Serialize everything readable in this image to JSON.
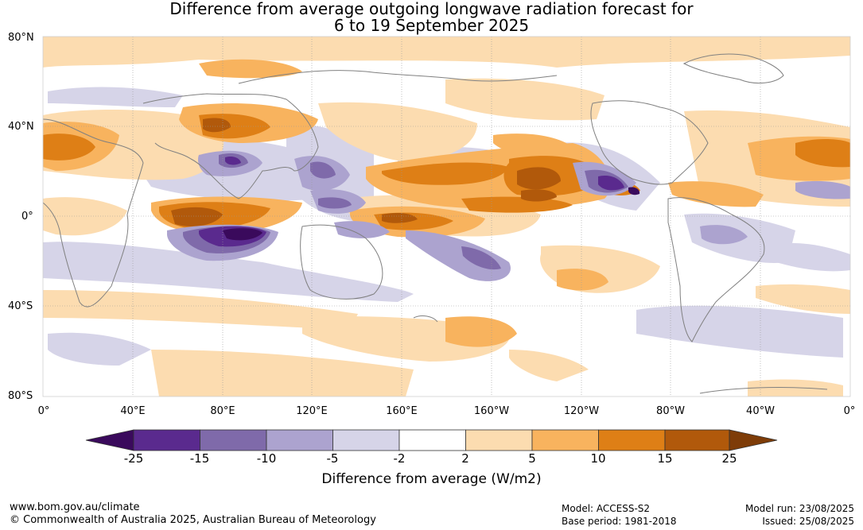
{
  "title": {
    "line1": "Difference from average outgoing longwave radiation forecast for",
    "line2": "6 to 19 September 2025"
  },
  "map": {
    "lat_labels": [
      "80°N",
      "40°N",
      "0°",
      "40°S",
      "80°S"
    ],
    "lon_labels": [
      "0°",
      "40°E",
      "80°E",
      "120°E",
      "160°E",
      "160°W",
      "120°W",
      "80°W",
      "40°W",
      "0°"
    ]
  },
  "colorbar": {
    "title": "Difference from average (W/m2)",
    "ticks": [
      "-25",
      "-15",
      "-10",
      "-5",
      "-2",
      "2",
      "5",
      "10",
      "15",
      "25"
    ],
    "colors": {
      "lt_-25": "#3a0a5c",
      "m25_m15": "#5a2a8e",
      "m15_m10": "#7f6aaa",
      "m10_m5": "#aca3cf",
      "m5_m2": "#d6d4e8",
      "m2_2": "#ffffff",
      "2_5": "#fcdcb0",
      "5_10": "#f8b35e",
      "10_15": "#de7f16",
      "15_25": "#b1590b",
      "gt_25": "#7e3c08"
    }
  },
  "footer": {
    "website": "www.bom.gov.au/climate",
    "copyright": "© Commonwealth of Australia 2025, Australian Bureau of Meteorology",
    "model": "Model: ACCESS-S2",
    "base_period": "Base period: 1981-2018",
    "model_run": "Model run: 23/08/2025",
    "issued": "Issued: 25/08/2025"
  }
}
